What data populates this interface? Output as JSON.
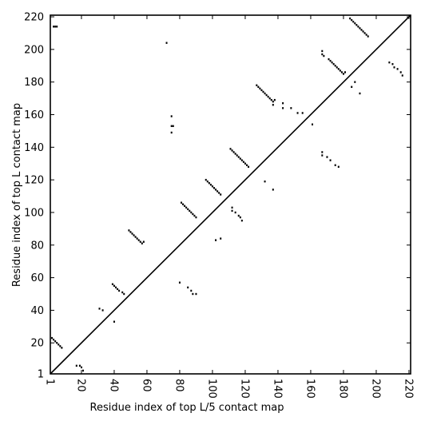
{
  "chart_data": {
    "type": "scatter",
    "title": "",
    "xlabel": "Residue index of top L/5 contact map",
    "ylabel": "Residue index of top L contact map",
    "xlim": [
      1,
      221
    ],
    "ylim": [
      1,
      221
    ],
    "x_ticks": [
      1,
      20,
      40,
      60,
      80,
      100,
      120,
      140,
      160,
      180,
      200,
      220
    ],
    "y_ticks": [
      1,
      20,
      40,
      60,
      80,
      100,
      120,
      140,
      160,
      180,
      200,
      220
    ],
    "x_tick_rotation_deg": -90,
    "grid": false,
    "diagonal_line": true,
    "series": [
      {
        "region": "below-diagonal",
        "points": [
          [
            2,
            23
          ],
          [
            3,
            22
          ],
          [
            4,
            21
          ],
          [
            5,
            20
          ],
          [
            6,
            19
          ],
          [
            7,
            18
          ],
          [
            8,
            17
          ],
          [
            17,
            6
          ],
          [
            19,
            6
          ],
          [
            20,
            5
          ],
          [
            21,
            3
          ],
          [
            31,
            41
          ],
          [
            33,
            40
          ],
          [
            40,
            33
          ],
          [
            39,
            56
          ],
          [
            40,
            55
          ],
          [
            41,
            54
          ],
          [
            42,
            53
          ],
          [
            43,
            52
          ],
          [
            45,
            51
          ],
          [
            46,
            50
          ],
          [
            80,
            57
          ],
          [
            85,
            54
          ],
          [
            87,
            52
          ],
          [
            88,
            50
          ],
          [
            90,
            50
          ],
          [
            102,
            83
          ],
          [
            105,
            84
          ],
          [
            112,
            103
          ],
          [
            112,
            101
          ],
          [
            114,
            100
          ],
          [
            116,
            98
          ],
          [
            117,
            97
          ],
          [
            118,
            95
          ],
          [
            132,
            119
          ],
          [
            137,
            114
          ],
          [
            167,
            137
          ],
          [
            167,
            135
          ],
          [
            170,
            134
          ],
          [
            172,
            132
          ],
          [
            175,
            129
          ],
          [
            177,
            128
          ],
          [
            185,
            177
          ],
          [
            187,
            180
          ],
          [
            190,
            173
          ],
          [
            208,
            192
          ],
          [
            210,
            191
          ],
          [
            211,
            189
          ],
          [
            213,
            188
          ],
          [
            215,
            186
          ],
          [
            216,
            184
          ]
        ]
      },
      {
        "region": "above-diagonal",
        "points": [
          [
            3,
            214
          ],
          [
            4,
            214
          ],
          [
            5,
            214
          ],
          [
            72,
            204
          ],
          [
            49,
            89
          ],
          [
            50,
            88
          ],
          [
            51,
            87
          ],
          [
            52,
            86
          ],
          [
            53,
            85
          ],
          [
            54,
            84
          ],
          [
            55,
            83
          ],
          [
            56,
            82
          ],
          [
            57,
            81
          ],
          [
            58,
            82
          ],
          [
            75,
            159
          ],
          [
            75,
            153
          ],
          [
            76,
            153
          ],
          [
            75,
            149
          ],
          [
            81,
            106
          ],
          [
            82,
            105
          ],
          [
            83,
            104
          ],
          [
            84,
            103
          ],
          [
            85,
            102
          ],
          [
            86,
            101
          ],
          [
            87,
            100
          ],
          [
            88,
            99
          ],
          [
            89,
            98
          ],
          [
            90,
            97
          ],
          [
            96,
            120
          ],
          [
            97,
            119
          ],
          [
            98,
            118
          ],
          [
            99,
            117
          ],
          [
            100,
            116
          ],
          [
            101,
            115
          ],
          [
            102,
            114
          ],
          [
            103,
            113
          ],
          [
            104,
            112
          ],
          [
            105,
            111
          ],
          [
            111,
            139
          ],
          [
            112,
            138
          ],
          [
            113,
            137
          ],
          [
            114,
            136
          ],
          [
            115,
            135
          ],
          [
            116,
            134
          ],
          [
            117,
            133
          ],
          [
            118,
            132
          ],
          [
            119,
            131
          ],
          [
            120,
            130
          ],
          [
            121,
            129
          ],
          [
            122,
            128
          ],
          [
            127,
            178
          ],
          [
            128,
            177
          ],
          [
            129,
            176
          ],
          [
            130,
            175
          ],
          [
            131,
            174
          ],
          [
            132,
            173
          ],
          [
            133,
            172
          ],
          [
            134,
            171
          ],
          [
            135,
            170
          ],
          [
            136,
            169
          ],
          [
            137,
            168
          ],
          [
            138,
            169
          ],
          [
            137,
            166
          ],
          [
            143,
            167
          ],
          [
            143,
            164
          ],
          [
            148,
            164
          ],
          [
            152,
            161
          ],
          [
            155,
            161
          ],
          [
            161,
            154
          ],
          [
            167,
            199
          ],
          [
            167,
            197
          ],
          [
            168,
            196
          ],
          [
            171,
            194
          ],
          [
            172,
            193
          ],
          [
            173,
            192
          ],
          [
            174,
            191
          ],
          [
            175,
            190
          ],
          [
            176,
            189
          ],
          [
            177,
            188
          ],
          [
            178,
            187
          ],
          [
            179,
            186
          ],
          [
            180,
            185
          ],
          [
            181,
            186
          ],
          [
            184,
            219
          ],
          [
            185,
            218
          ],
          [
            186,
            217
          ],
          [
            187,
            216
          ],
          [
            188,
            215
          ],
          [
            189,
            214
          ],
          [
            190,
            213
          ],
          [
            191,
            212
          ],
          [
            192,
            211
          ],
          [
            193,
            210
          ],
          [
            194,
            209
          ],
          [
            195,
            208
          ]
        ]
      }
    ]
  }
}
